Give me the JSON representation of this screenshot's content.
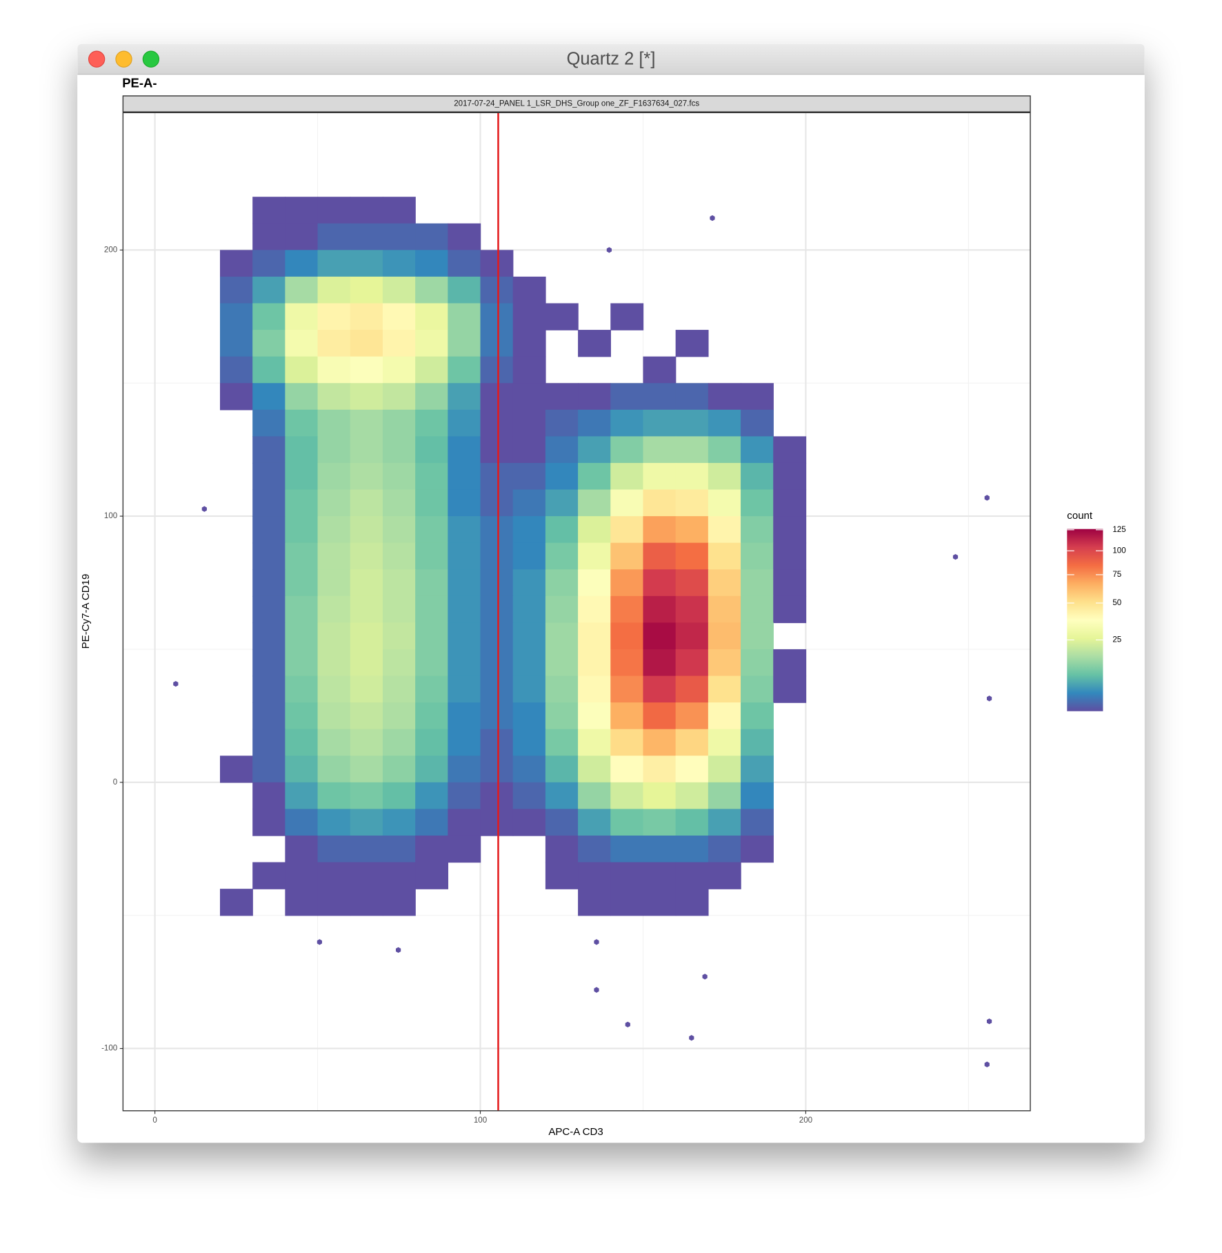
{
  "window": {
    "title": "Quartz 2 [*]"
  },
  "chart_data": {
    "type": "bin2d",
    "title": "PE-A-",
    "strip": "2017-07-24_PANEL 1_LSR_DHS_Group one_ZF_F1637634_027.fcs",
    "xlabel": "APC-A CD3",
    "ylabel": "PE-Cy7-A CD19",
    "xlim": [
      -9.8,
      269
    ],
    "ylim": [
      -123.4,
      251.6
    ],
    "xticks": [
      0,
      100,
      200
    ],
    "yticks": [
      -100,
      0,
      100,
      200
    ],
    "xminor": [
      50,
      150,
      250
    ],
    "yminor": [
      -50,
      50,
      150
    ],
    "grid": true,
    "vline": {
      "x": 105.5,
      "color": "#e41a1c"
    },
    "legend": {
      "title": "count",
      "ticks": [
        25,
        50,
        75,
        100,
        125
      ],
      "limits": [
        1,
        126
      ],
      "trans": "sqrt"
    },
    "palette": [
      "#5e4fa2",
      "#3288bd",
      "#66c2a5",
      "#abdda4",
      "#e6f598",
      "#ffffbf",
      "#fee08b",
      "#fdae61",
      "#f46d43",
      "#d53e4f",
      "#9e0142"
    ],
    "x": [
      25,
      35,
      45,
      55,
      65,
      75,
      85,
      95,
      105,
      115,
      125,
      135,
      145,
      155,
      165,
      175,
      185,
      195
    ],
    "y": [
      215,
      205,
      195,
      185,
      175,
      165,
      155,
      145,
      135,
      125,
      115,
      105,
      95,
      85,
      75,
      65,
      55,
      45,
      35,
      25,
      15,
      5,
      -5,
      -15,
      -25,
      -35,
      -45
    ],
    "counts": [
      [
        null,
        1,
        1,
        1,
        1,
        1,
        null,
        null,
        null,
        null,
        null,
        null,
        null,
        null,
        null,
        null,
        null,
        null
      ],
      [
        null,
        1,
        1,
        2,
        2,
        2,
        2,
        1,
        null,
        null,
        null,
        null,
        null,
        null,
        null,
        null,
        null,
        null
      ],
      [
        1,
        2,
        4,
        6,
        6,
        5,
        4,
        2,
        1,
        null,
        null,
        null,
        null,
        null,
        null,
        null,
        null,
        null
      ],
      [
        2,
        6,
        16,
        24,
        26,
        22,
        15,
        8,
        2,
        1,
        null,
        null,
        null,
        null,
        null,
        null,
        null,
        null
      ],
      [
        3,
        10,
        30,
        42,
        45,
        40,
        28,
        14,
        3,
        1,
        1,
        null,
        1,
        null,
        null,
        null,
        null,
        null
      ],
      [
        3,
        12,
        32,
        45,
        48,
        42,
        30,
        14,
        3,
        1,
        null,
        1,
        null,
        null,
        1,
        null,
        null,
        null
      ],
      [
        2,
        9,
        24,
        34,
        36,
        32,
        22,
        10,
        2,
        1,
        null,
        null,
        null,
        1,
        null,
        null,
        null,
        null
      ],
      [
        1,
        4,
        14,
        20,
        22,
        20,
        14,
        6,
        1,
        1,
        1,
        1,
        2,
        2,
        2,
        1,
        1,
        null
      ],
      [
        null,
        3,
        10,
        14,
        16,
        14,
        10,
        5,
        1,
        1,
        2,
        3,
        5,
        6,
        6,
        5,
        2,
        null
      ],
      [
        null,
        2,
        9,
        14,
        16,
        14,
        9,
        4,
        1,
        1,
        3,
        6,
        12,
        16,
        16,
        12,
        5,
        1
      ],
      [
        null,
        2,
        9,
        15,
        17,
        15,
        10,
        4,
        2,
        2,
        4,
        10,
        22,
        30,
        30,
        22,
        8,
        1
      ],
      [
        null,
        2,
        10,
        16,
        19,
        16,
        10,
        4,
        2,
        3,
        6,
        16,
        34,
        48,
        46,
        32,
        10,
        1
      ],
      [
        null,
        2,
        10,
        17,
        20,
        17,
        11,
        5,
        3,
        4,
        9,
        24,
        48,
        70,
        66,
        42,
        12,
        1
      ],
      [
        null,
        2,
        11,
        18,
        21,
        18,
        11,
        5,
        3,
        4,
        11,
        30,
        60,
        90,
        84,
        50,
        13,
        1
      ],
      [
        null,
        2,
        11,
        18,
        22,
        19,
        12,
        5,
        3,
        5,
        13,
        36,
        72,
        105,
        98,
        56,
        14,
        1
      ],
      [
        null,
        2,
        12,
        19,
        22,
        19,
        12,
        5,
        3,
        5,
        14,
        40,
        80,
        115,
        108,
        60,
        14,
        1
      ],
      [
        null,
        2,
        12,
        20,
        23,
        20,
        12,
        5,
        3,
        5,
        15,
        42,
        84,
        122,
        112,
        62,
        14,
        null
      ],
      [
        null,
        2,
        12,
        20,
        23,
        19,
        12,
        5,
        3,
        5,
        15,
        42,
        82,
        118,
        106,
        58,
        13,
        1
      ],
      [
        null,
        2,
        11,
        19,
        22,
        18,
        11,
        5,
        3,
        5,
        14,
        40,
        76,
        105,
        92,
        50,
        12,
        1
      ],
      [
        null,
        2,
        10,
        18,
        20,
        17,
        10,
        4,
        3,
        4,
        13,
        36,
        66,
        86,
        74,
        40,
        10,
        null
      ],
      [
        null,
        2,
        9,
        16,
        18,
        15,
        9,
        4,
        2,
        4,
        11,
        30,
        52,
        64,
        54,
        30,
        8,
        null
      ],
      [
        1,
        2,
        8,
        14,
        16,
        13,
        8,
        3,
        2,
        3,
        8,
        22,
        38,
        44,
        38,
        22,
        6,
        null
      ],
      [
        null,
        1,
        6,
        10,
        11,
        9,
        5,
        2,
        1,
        2,
        5,
        14,
        22,
        26,
        22,
        14,
        4,
        null
      ],
      [
        null,
        1,
        3,
        5,
        6,
        5,
        3,
        1,
        1,
        1,
        2,
        6,
        10,
        11,
        9,
        6,
        2,
        null
      ],
      [
        null,
        null,
        1,
        2,
        2,
        2,
        1,
        1,
        null,
        null,
        1,
        2,
        3,
        3,
        3,
        2,
        1,
        null
      ],
      [
        null,
        1,
        1,
        1,
        1,
        1,
        1,
        null,
        null,
        null,
        1,
        1,
        1,
        1,
        1,
        1,
        null,
        null
      ],
      [
        1,
        null,
        1,
        1,
        1,
        1,
        null,
        null,
        null,
        null,
        null,
        1,
        1,
        1,
        1,
        null,
        null,
        null
      ]
    ],
    "outliers": {
      "x": [
        255.7,
        246,
        256.4,
        256.4,
        255.7,
        171.3,
        139.6,
        135.7,
        135.7,
        145.3,
        164.9,
        169,
        6.4,
        15.2,
        74.8,
        50.6
      ],
      "y": [
        106.9,
        84.7,
        31.5,
        -89.8,
        -106,
        212,
        200,
        -60,
        -78,
        -91,
        -96,
        -73,
        37,
        102.7,
        -63,
        -60
      ]
    }
  }
}
